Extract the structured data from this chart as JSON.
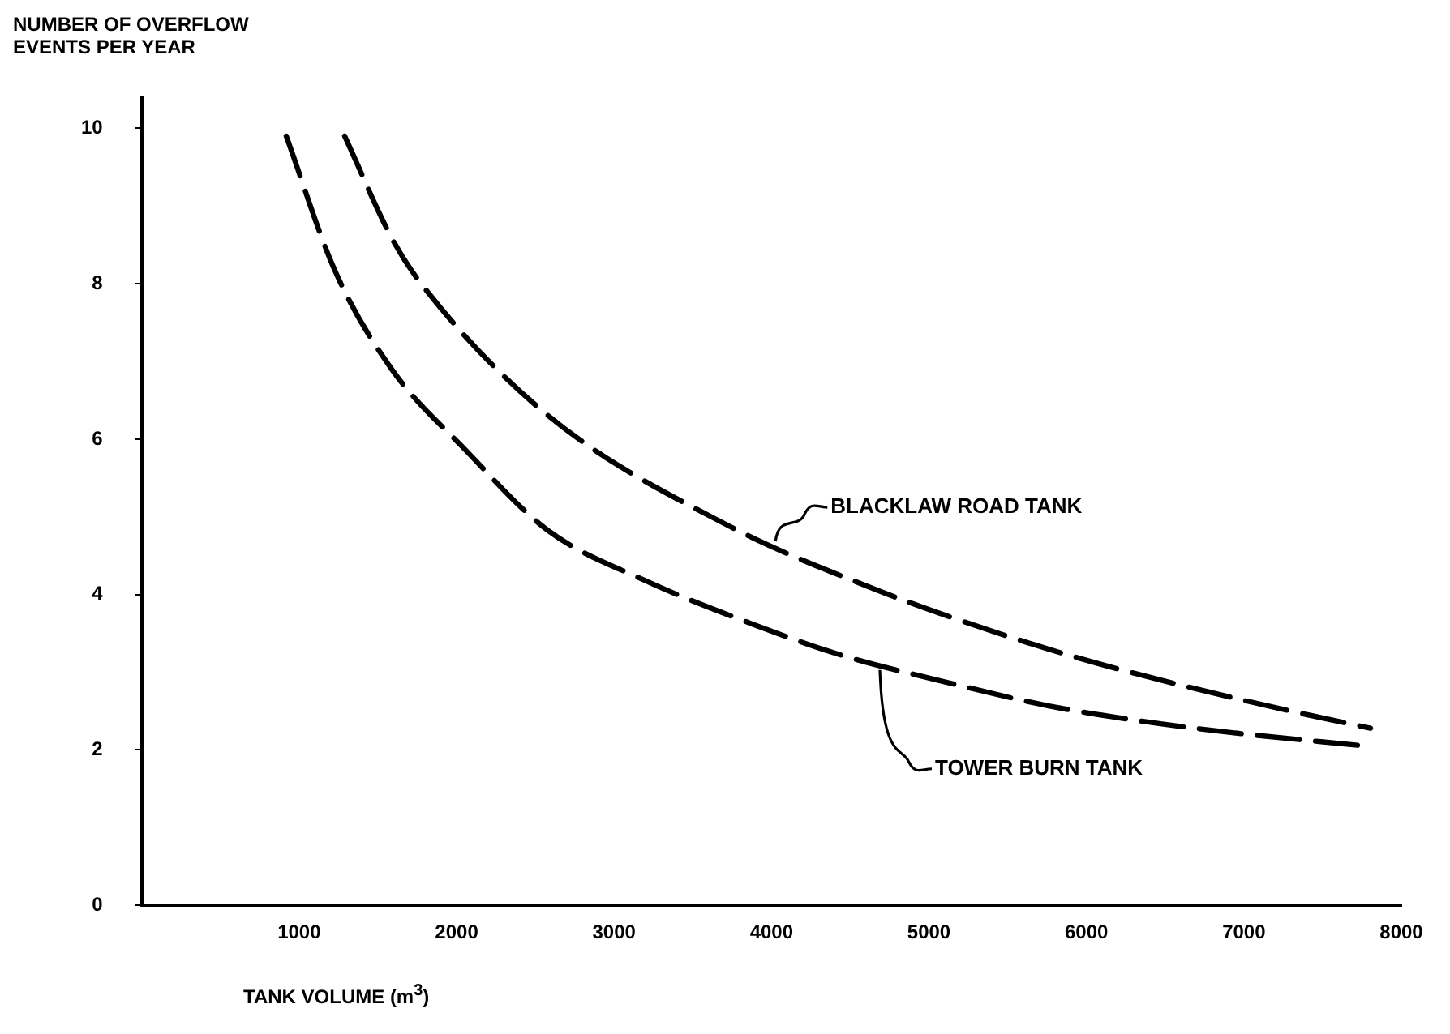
{
  "chart_data": {
    "type": "line",
    "ylabel": "NUMBER OF OVERFLOW\nEVENTS PER YEAR",
    "xlabel": "TANK VOLUME (m$^{3}$)",
    "xlim": [
      0,
      8000
    ],
    "xticks": [
      1000,
      2000,
      3000,
      4000,
      5000,
      6000,
      7000,
      8000
    ],
    "ylim": [
      0,
      10.4
    ],
    "yticks": [
      0,
      2,
      4,
      6,
      8,
      10
    ],
    "grid": false,
    "legend": false,
    "line_style": "dashed",
    "marker": "none",
    "series": [
      {
        "name": "BLACKLAW ROAD TANK",
        "color": "#000000",
        "x": [
          1289,
          1598,
          1794,
          2577,
          3732,
          4629,
          5165,
          5887,
          6588,
          7320,
          7804
        ],
        "values": [
          9.9,
          8.55,
          7.95,
          6.31,
          4.88,
          4.09,
          3.69,
          3.22,
          2.84,
          2.49,
          2.28
        ]
      },
      {
        "name": "TOWER BURN TANK",
        "color": "#000000",
        "x": [
          918,
          1227,
          1588,
          2052,
          2577,
          3186,
          3866,
          4443,
          5093,
          5753,
          6351,
          6938,
          7773
        ],
        "values": [
          9.9,
          8.17,
          6.9,
          5.87,
          4.83,
          4.19,
          3.63,
          3.22,
          2.88,
          2.57,
          2.37,
          2.22,
          2.05
        ]
      }
    ]
  }
}
